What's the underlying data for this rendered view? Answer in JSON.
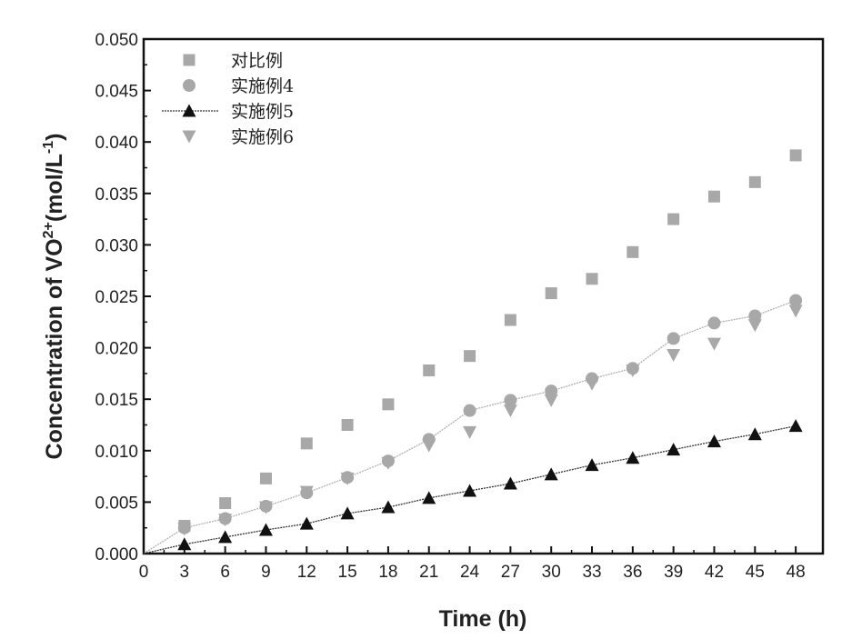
{
  "chart_data": {
    "type": "scatter",
    "title": "",
    "xlabel": "Time (h)",
    "ylabel": "Concentration of VO2+(mol/L-1)",
    "ylabel_parts": {
      "main": "Concentration of VO",
      "sup1": "2+",
      "mid": "(mol/L",
      "sup2": "-1",
      "end": ")"
    },
    "xlim": [
      0,
      50
    ],
    "ylim": [
      0,
      0.05
    ],
    "xticks": [
      0,
      3,
      6,
      9,
      12,
      15,
      18,
      21,
      24,
      27,
      30,
      33,
      36,
      39,
      42,
      45,
      48
    ],
    "yticks": [
      "0.000",
      "0.005",
      "0.010",
      "0.015",
      "0.020",
      "0.025",
      "0.030",
      "0.035",
      "0.040",
      "0.045",
      "0.050"
    ],
    "grid": false,
    "legend_position": "top-left",
    "x": [
      3,
      6,
      9,
      12,
      15,
      18,
      21,
      24,
      27,
      30,
      33,
      36,
      39,
      42,
      45,
      48
    ],
    "series": [
      {
        "name": "对比例",
        "marker": "square",
        "color": "#a8a8a8",
        "line": false,
        "values": [
          0.0027,
          0.0049,
          0.0073,
          0.0107,
          0.0125,
          0.0145,
          0.0178,
          0.0192,
          0.0227,
          0.0253,
          0.0267,
          0.0293,
          0.0325,
          0.0347,
          0.0361,
          0.0387
        ]
      },
      {
        "name": "实施例4",
        "marker": "circle",
        "color": "#a8a8a8",
        "line": true,
        "line_color": "#b0b0b0",
        "values": [
          0.0025,
          0.0034,
          0.0046,
          0.0059,
          0.0074,
          0.009,
          0.0111,
          0.0139,
          0.0149,
          0.0158,
          0.017,
          0.018,
          0.0209,
          0.0224,
          0.0231,
          0.0246
        ]
      },
      {
        "name": "实施例5",
        "marker": "triangle-up",
        "color": "#111111",
        "line": true,
        "line_color": "#333333",
        "values": [
          0.0009,
          0.0016,
          0.0023,
          0.0029,
          0.0039,
          0.0045,
          0.0054,
          0.0061,
          0.0068,
          0.0077,
          0.0086,
          0.0093,
          0.0101,
          0.0109,
          0.0116,
          0.0124
        ]
      },
      {
        "name": "实施例6",
        "marker": "triangle-down",
        "color": "#a8a8a8",
        "line": false,
        "values": [
          0.0024,
          0.0033,
          0.0045,
          0.006,
          0.0073,
          0.0088,
          0.0105,
          0.0118,
          0.0139,
          0.0149,
          0.0165,
          0.0178,
          0.0193,
          0.0204,
          0.0222,
          0.0236
        ]
      }
    ]
  }
}
